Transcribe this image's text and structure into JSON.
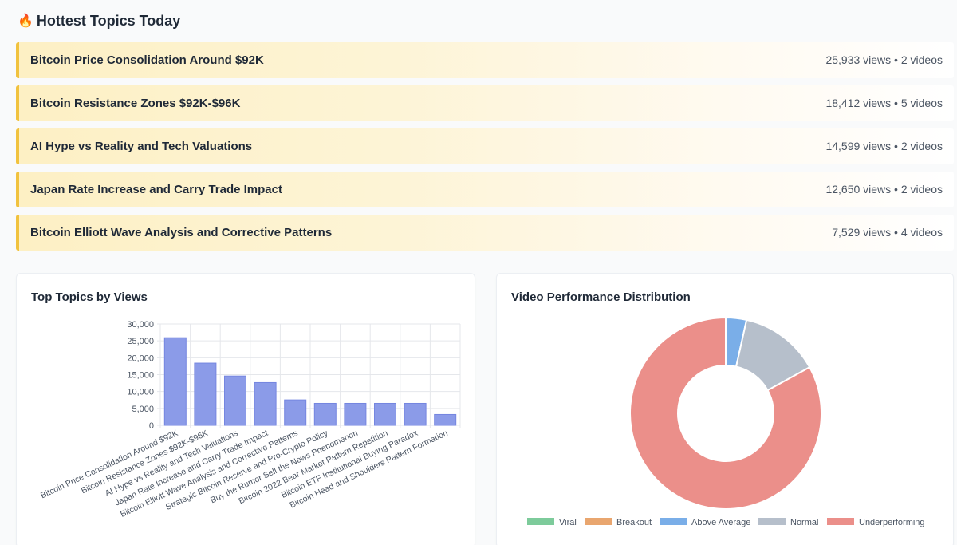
{
  "hottest": {
    "icon": "fire-icon",
    "title": "Hottest Topics Today",
    "topics": [
      {
        "name": "Bitcoin Price Consolidation Around $92K",
        "stats": "25,933 views • 2 videos"
      },
      {
        "name": "Bitcoin Resistance Zones $92K-$96K",
        "stats": "18,412 views • 5 videos"
      },
      {
        "name": "AI Hype vs Reality and Tech Valuations",
        "stats": "14,599 views • 2 videos"
      },
      {
        "name": "Japan Rate Increase and Carry Trade Impact",
        "stats": "12,650 views • 2 videos"
      },
      {
        "name": "Bitcoin Elliott Wave Analysis and Corrective Patterns",
        "stats": "7,529 views • 4 videos"
      }
    ]
  },
  "colors": {
    "bar": "#8b9be8",
    "accent_border": "#f1c23e",
    "viral": "#7dcb9b",
    "breakout": "#e9a66f",
    "above_average": "#7aaee8",
    "normal": "#b6bfcb",
    "underperforming": "#eb8f8a"
  },
  "chart_data": [
    {
      "type": "bar",
      "title": "Top Topics by Views",
      "categories": [
        "Bitcoin Price Consolidation Around $92K",
        "Bitcoin Resistance Zones $92K-$96K",
        "AI Hype vs Reality and Tech Valuations",
        "Japan Rate Increase and Carry Trade Impact",
        "Bitcoin Elliott Wave Analysis and Corrective Patterns",
        "Strategic Bitcoin Reserve and Pro-Crypto Policy",
        "Buy the Rumor Sell the News Phenomenon",
        "Bitcoin 2022 Bear Market Pattern Repetition",
        "Bitcoin ETF Institutional Buying Paradox",
        "Bitcoin Head and Shoulders Pattern Formation"
      ],
      "values": [
        25933,
        18412,
        14599,
        12650,
        7529,
        6500,
        6500,
        6500,
        6500,
        3200
      ],
      "ylim": [
        0,
        30000
      ],
      "yticks": [
        "0",
        "5,000",
        "10,000",
        "15,000",
        "20,000",
        "25,000",
        "30,000"
      ],
      "grid": true
    },
    {
      "type": "pie",
      "title": "Video Performance Distribution",
      "labels": [
        "Viral",
        "Breakout",
        "Above Average",
        "Normal",
        "Underperforming"
      ],
      "values": [
        0,
        0,
        3.5,
        13.5,
        83
      ],
      "legend": "bottom"
    }
  ]
}
